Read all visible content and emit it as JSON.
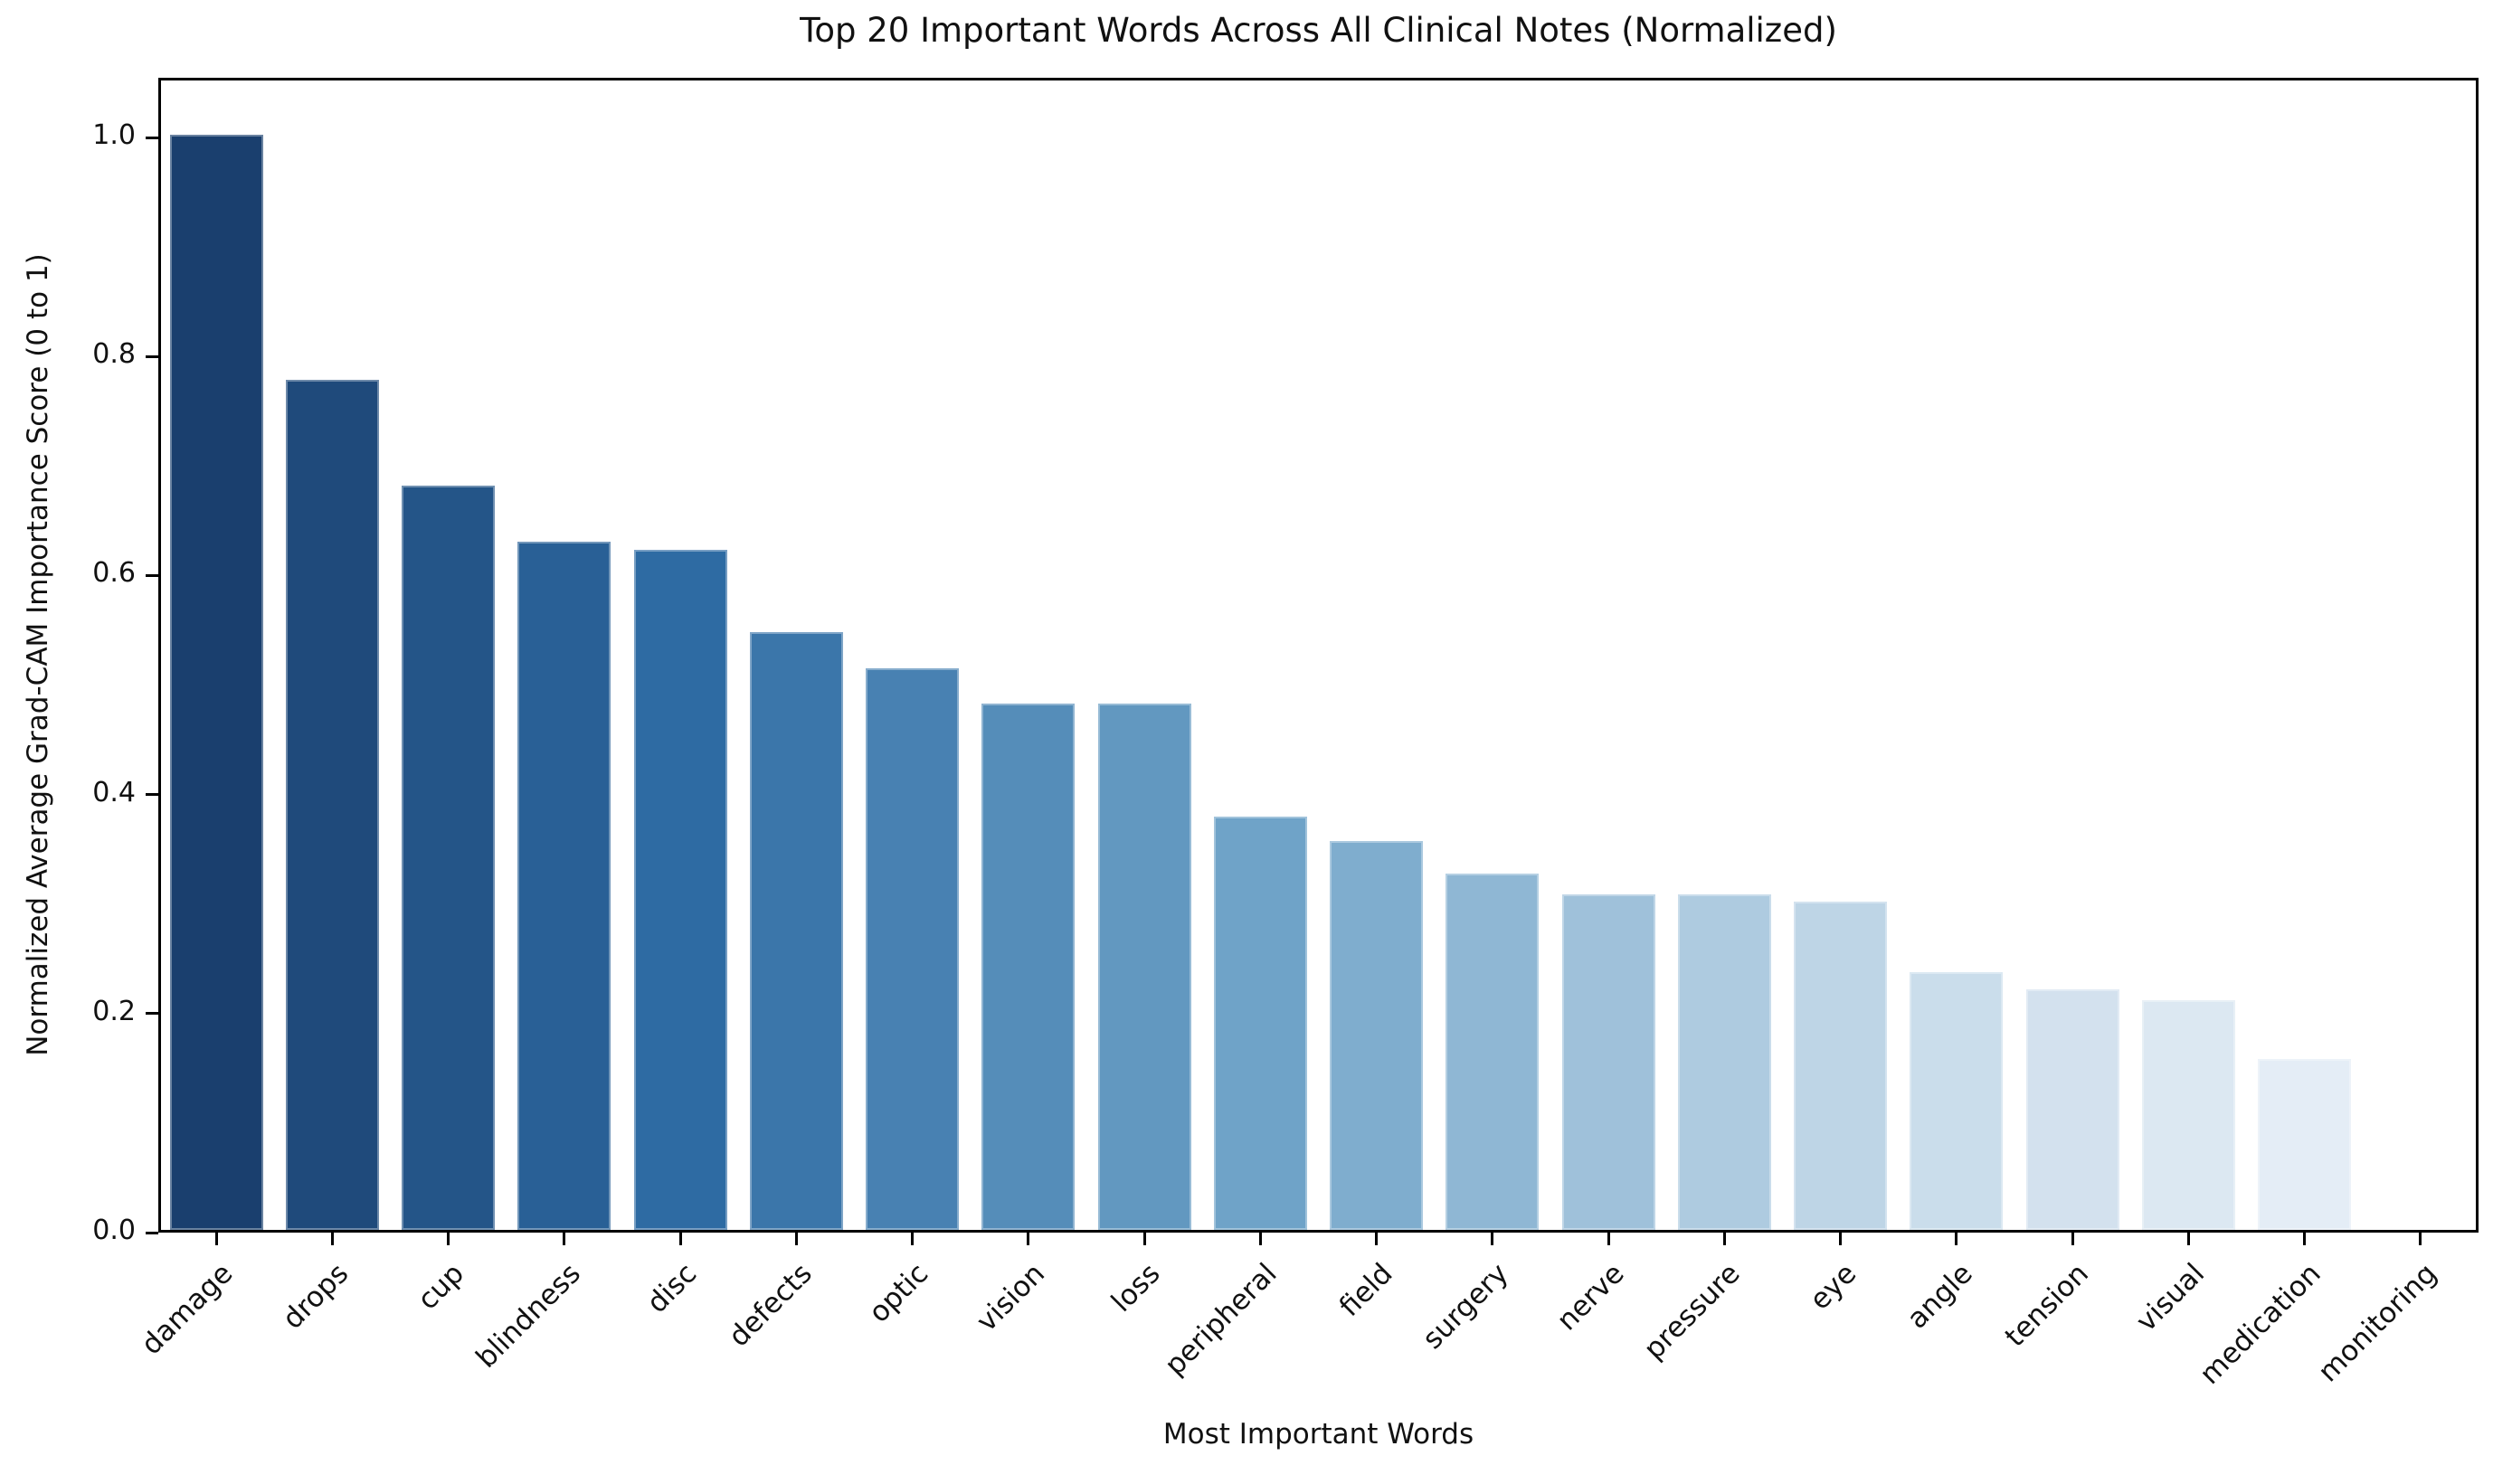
{
  "figure": {
    "background": "#ffffff",
    "axis_color": "#000000"
  },
  "chart_data": {
    "type": "bar",
    "title": "Top 20 Important Words Across All Clinical Notes (Normalized)",
    "xlabel": "Most Important Words",
    "ylabel": "Normalized Average Grad-CAM Importance Score (0 to 1)",
    "categories": [
      "damage",
      "drops",
      "cup",
      "blindness",
      "disc",
      "defects",
      "optic",
      "vision",
      "loss",
      "peripheral",
      "field",
      "surgery",
      "nerve",
      "pressure",
      "eye",
      "angle",
      "tension",
      "visual",
      "medication",
      "monitoring"
    ],
    "values": [
      1.0,
      0.776,
      0.68,
      0.628,
      0.621,
      0.546,
      0.513,
      0.481,
      0.481,
      0.377,
      0.355,
      0.325,
      0.306,
      0.306,
      0.3,
      0.235,
      0.22,
      0.21,
      0.156,
      0.0
    ],
    "bar_colors": [
      "#1a3f6e",
      "#1f4a7b",
      "#245588",
      "#296096",
      "#2e6ba3",
      "#3b76aa",
      "#4881b2",
      "#558db9",
      "#6298c0",
      "#6fa3c8",
      "#7fadce",
      "#8fb7d4",
      "#9fc1da",
      "#aecbe0",
      "#bed5e6",
      "#caddeb",
      "#d3e1ee",
      "#dce8f2",
      "#e4edf6",
      "#eef3fa"
    ],
    "yticks": [
      "0.0",
      "0.2",
      "0.4",
      "0.6",
      "0.8",
      "1.0"
    ],
    "ylim": [
      0,
      1.05
    ],
    "x_tick_rotation_deg": 45,
    "grid": false,
    "legend_position": "none"
  }
}
